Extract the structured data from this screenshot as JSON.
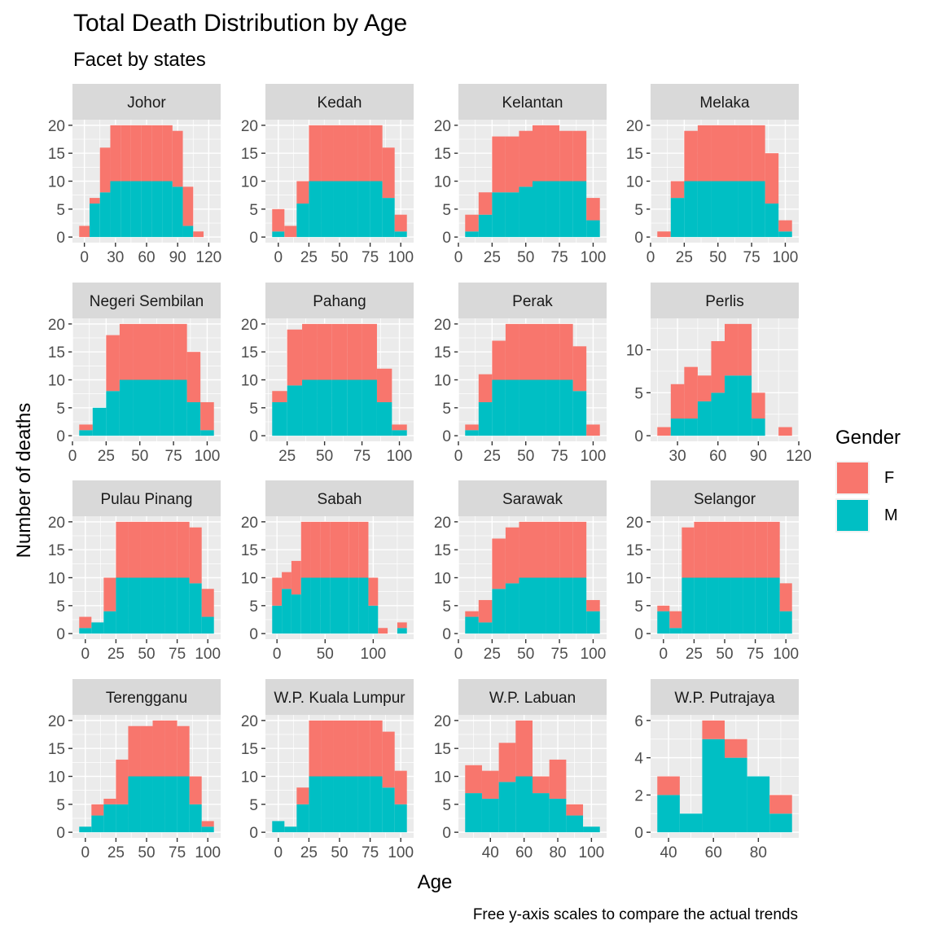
{
  "chart_data": {
    "type": "bar",
    "subtype": "stacked-histogram-facets",
    "title": "Total Death Distribution by Age",
    "subtitle": "Facet by states",
    "xlabel": "Age",
    "ylabel": "Number of deaths",
    "caption": "Free y-axis scales to compare the actual trends",
    "legend": {
      "title": "Gender",
      "position": "right",
      "entries": [
        {
          "key": "F",
          "color": "#F8766D"
        },
        {
          "key": "M",
          "color": "#00BFC4"
        }
      ]
    },
    "binwidth": 10,
    "grid": true,
    "facets": [
      {
        "name": "Johor",
        "xlim": [
          -5,
          125
        ],
        "xticks": [
          0,
          30,
          60,
          90,
          120
        ],
        "ylim": [
          0,
          20
        ],
        "yticks": [
          0,
          5,
          10,
          15,
          20
        ],
        "bins": [
          0,
          10,
          20,
          30,
          40,
          50,
          60,
          70,
          80,
          90,
          100,
          110
        ],
        "M": [
          0,
          6,
          8,
          10,
          10,
          10,
          10,
          10,
          10,
          9,
          2,
          0
        ],
        "F": [
          2,
          1,
          8,
          10,
          10,
          10,
          10,
          10,
          10,
          10,
          7,
          1
        ]
      },
      {
        "name": "Kedah",
        "xlim": [
          -5,
          105
        ],
        "xticks": [
          0,
          25,
          50,
          75,
          100
        ],
        "ylim": [
          0,
          20
        ],
        "yticks": [
          0,
          5,
          10,
          15,
          20
        ],
        "bins": [
          0,
          10,
          20,
          30,
          40,
          50,
          60,
          70,
          80,
          90,
          100
        ],
        "M": [
          1,
          0,
          6,
          10,
          10,
          10,
          10,
          10,
          10,
          7,
          1
        ],
        "F": [
          4,
          2,
          4,
          10,
          10,
          10,
          10,
          10,
          10,
          9,
          3
        ]
      },
      {
        "name": "Kelantan",
        "xlim": [
          5,
          105
        ],
        "xticks": [
          0,
          25,
          50,
          75,
          100
        ],
        "ylim": [
          0,
          20
        ],
        "yticks": [
          0,
          5,
          10,
          15,
          20
        ],
        "bins": [
          10,
          20,
          30,
          40,
          50,
          60,
          70,
          80,
          90,
          100
        ],
        "M": [
          1,
          4,
          8,
          8,
          9,
          10,
          10,
          10,
          10,
          3
        ],
        "F": [
          3,
          4,
          10,
          10,
          10,
          10,
          10,
          9,
          9,
          4
        ]
      },
      {
        "name": "Melaka",
        "xlim": [
          5,
          105
        ],
        "xticks": [
          0,
          25,
          50,
          75,
          100
        ],
        "ylim": [
          0,
          20
        ],
        "yticks": [
          0,
          5,
          10,
          15,
          20
        ],
        "bins": [
          10,
          20,
          30,
          40,
          50,
          60,
          70,
          80,
          90,
          100
        ],
        "M": [
          0,
          7,
          10,
          10,
          10,
          10,
          10,
          10,
          6,
          1
        ],
        "F": [
          1,
          3,
          9,
          10,
          10,
          10,
          10,
          10,
          9,
          2
        ]
      },
      {
        "name": "Negeri Sembilan",
        "xlim": [
          5,
          105
        ],
        "xticks": [
          0,
          25,
          50,
          75,
          100
        ],
        "ylim": [
          0,
          20
        ],
        "yticks": [
          0,
          5,
          10,
          15,
          20
        ],
        "bins": [
          10,
          20,
          30,
          40,
          50,
          60,
          70,
          80,
          90,
          100
        ],
        "M": [
          1,
          5,
          8,
          10,
          10,
          10,
          10,
          10,
          6,
          1
        ],
        "F": [
          1,
          0,
          10,
          10,
          10,
          10,
          10,
          10,
          9,
          5
        ]
      },
      {
        "name": "Pahang",
        "xlim": [
          15,
          105
        ],
        "xticks": [
          25,
          50,
          75,
          100
        ],
        "ylim": [
          0,
          20
        ],
        "yticks": [
          0,
          5,
          10,
          15,
          20
        ],
        "bins": [
          20,
          30,
          40,
          50,
          60,
          70,
          80,
          90,
          100
        ],
        "M": [
          6,
          9,
          10,
          10,
          10,
          10,
          10,
          6,
          1
        ],
        "F": [
          2,
          10,
          10,
          10,
          10,
          10,
          10,
          6,
          1
        ]
      },
      {
        "name": "Perak",
        "xlim": [
          5,
          105
        ],
        "xticks": [
          0,
          25,
          50,
          75,
          100
        ],
        "ylim": [
          0,
          20
        ],
        "yticks": [
          0,
          5,
          10,
          15,
          20
        ],
        "bins": [
          10,
          20,
          30,
          40,
          50,
          60,
          70,
          80,
          90,
          100
        ],
        "M": [
          1,
          6,
          10,
          10,
          10,
          10,
          10,
          10,
          8,
          0
        ],
        "F": [
          1,
          5,
          7,
          10,
          10,
          10,
          10,
          10,
          8,
          2
        ]
      },
      {
        "name": "Perlis",
        "xlim": [
          15,
          115
        ],
        "xticks": [
          30,
          60,
          90,
          120
        ],
        "ylim": [
          0,
          13
        ],
        "yticks": [
          0,
          5,
          10
        ],
        "bins": [
          20,
          30,
          40,
          50,
          60,
          70,
          80,
          90,
          100,
          110
        ],
        "M": [
          0,
          2,
          2,
          4,
          5,
          7,
          7,
          2,
          0,
          0
        ],
        "F": [
          1,
          4,
          6,
          3,
          6,
          6,
          6,
          3,
          0,
          1
        ]
      },
      {
        "name": "Pulau Pinang",
        "xlim": [
          -5,
          105
        ],
        "xticks": [
          0,
          25,
          50,
          75,
          100
        ],
        "ylim": [
          0,
          20
        ],
        "yticks": [
          0,
          5,
          10,
          15,
          20
        ],
        "bins": [
          0,
          10,
          20,
          30,
          40,
          50,
          60,
          70,
          80,
          90,
          100
        ],
        "M": [
          1,
          2,
          4,
          10,
          10,
          10,
          10,
          10,
          10,
          9,
          3
        ],
        "F": [
          2,
          0,
          6,
          10,
          10,
          10,
          10,
          10,
          10,
          10,
          5
        ]
      },
      {
        "name": "Sabah",
        "xlim": [
          -5,
          135
        ],
        "xticks": [
          0,
          50,
          100
        ],
        "ylim": [
          0,
          20
        ],
        "yticks": [
          0,
          5,
          10,
          15,
          20
        ],
        "bins": [
          0,
          10,
          20,
          30,
          40,
          50,
          60,
          70,
          80,
          90,
          100,
          110,
          120,
          130
        ],
        "M": [
          5,
          8,
          7,
          10,
          10,
          10,
          10,
          10,
          10,
          10,
          5,
          0,
          0,
          1
        ],
        "F": [
          5,
          3,
          6,
          10,
          10,
          10,
          10,
          10,
          10,
          10,
          5,
          1,
          0,
          1
        ]
      },
      {
        "name": "Sarawak",
        "xlim": [
          5,
          105
        ],
        "xticks": [
          0,
          25,
          50,
          75,
          100
        ],
        "ylim": [
          0,
          20
        ],
        "yticks": [
          0,
          5,
          10,
          15,
          20
        ],
        "bins": [
          10,
          20,
          30,
          40,
          50,
          60,
          70,
          80,
          90,
          100
        ],
        "M": [
          3,
          2,
          8,
          9,
          10,
          10,
          10,
          10,
          10,
          4
        ],
        "F": [
          1,
          4,
          9,
          10,
          10,
          10,
          10,
          10,
          10,
          2
        ]
      },
      {
        "name": "Selangor",
        "xlim": [
          -5,
          105
        ],
        "xticks": [
          0,
          25,
          50,
          75,
          100
        ],
        "ylim": [
          0,
          20
        ],
        "yticks": [
          0,
          5,
          10,
          15,
          20
        ],
        "bins": [
          0,
          10,
          20,
          30,
          40,
          50,
          60,
          70,
          80,
          90,
          100
        ],
        "M": [
          4,
          1,
          10,
          10,
          10,
          10,
          10,
          10,
          10,
          10,
          4
        ],
        "F": [
          1,
          3,
          9,
          10,
          10,
          10,
          10,
          10,
          10,
          10,
          5
        ]
      },
      {
        "name": "Terengganu",
        "xlim": [
          -5,
          105
        ],
        "xticks": [
          0,
          25,
          50,
          75,
          100
        ],
        "ylim": [
          0,
          20
        ],
        "yticks": [
          0,
          5,
          10,
          15,
          20
        ],
        "bins": [
          0,
          10,
          20,
          30,
          40,
          50,
          60,
          70,
          80,
          90,
          100
        ],
        "M": [
          1,
          3,
          5,
          5,
          10,
          10,
          10,
          10,
          10,
          5,
          1
        ],
        "F": [
          0,
          2,
          1,
          8,
          9,
          9,
          10,
          10,
          9,
          5,
          1
        ]
      },
      {
        "name": "W.P. Kuala Lumpur",
        "xlim": [
          -5,
          105
        ],
        "xticks": [
          0,
          25,
          50,
          75,
          100
        ],
        "ylim": [
          0,
          20
        ],
        "yticks": [
          0,
          5,
          10,
          15,
          20
        ],
        "bins": [
          0,
          10,
          20,
          30,
          40,
          50,
          60,
          70,
          80,
          90,
          100
        ],
        "M": [
          2,
          1,
          5,
          10,
          10,
          10,
          10,
          10,
          10,
          8,
          5
        ],
        "F": [
          0,
          0,
          3,
          10,
          10,
          10,
          10,
          10,
          10,
          10,
          6
        ]
      },
      {
        "name": "W.P. Labuan",
        "xlim": [
          25,
          105
        ],
        "xticks": [
          40,
          60,
          80,
          100
        ],
        "ylim": [
          0,
          20
        ],
        "yticks": [
          0,
          5,
          10,
          15,
          20
        ],
        "bins": [
          30,
          40,
          50,
          60,
          70,
          80,
          90,
          100
        ],
        "M": [
          7,
          6,
          9,
          10,
          7,
          6,
          3,
          1
        ],
        "F": [
          5,
          5,
          7,
          10,
          3,
          7,
          2,
          0
        ]
      },
      {
        "name": "W.P. Putrajaya",
        "xlim": [
          35,
          95
        ],
        "xticks": [
          40,
          60,
          80
        ],
        "ylim": [
          0,
          6
        ],
        "yticks": [
          0,
          2,
          4,
          6
        ],
        "bins": [
          40,
          50,
          60,
          70,
          80,
          90
        ],
        "M": [
          2,
          1,
          5,
          4,
          3,
          1
        ],
        "F": [
          1,
          0,
          1,
          1,
          0,
          1
        ]
      }
    ]
  }
}
